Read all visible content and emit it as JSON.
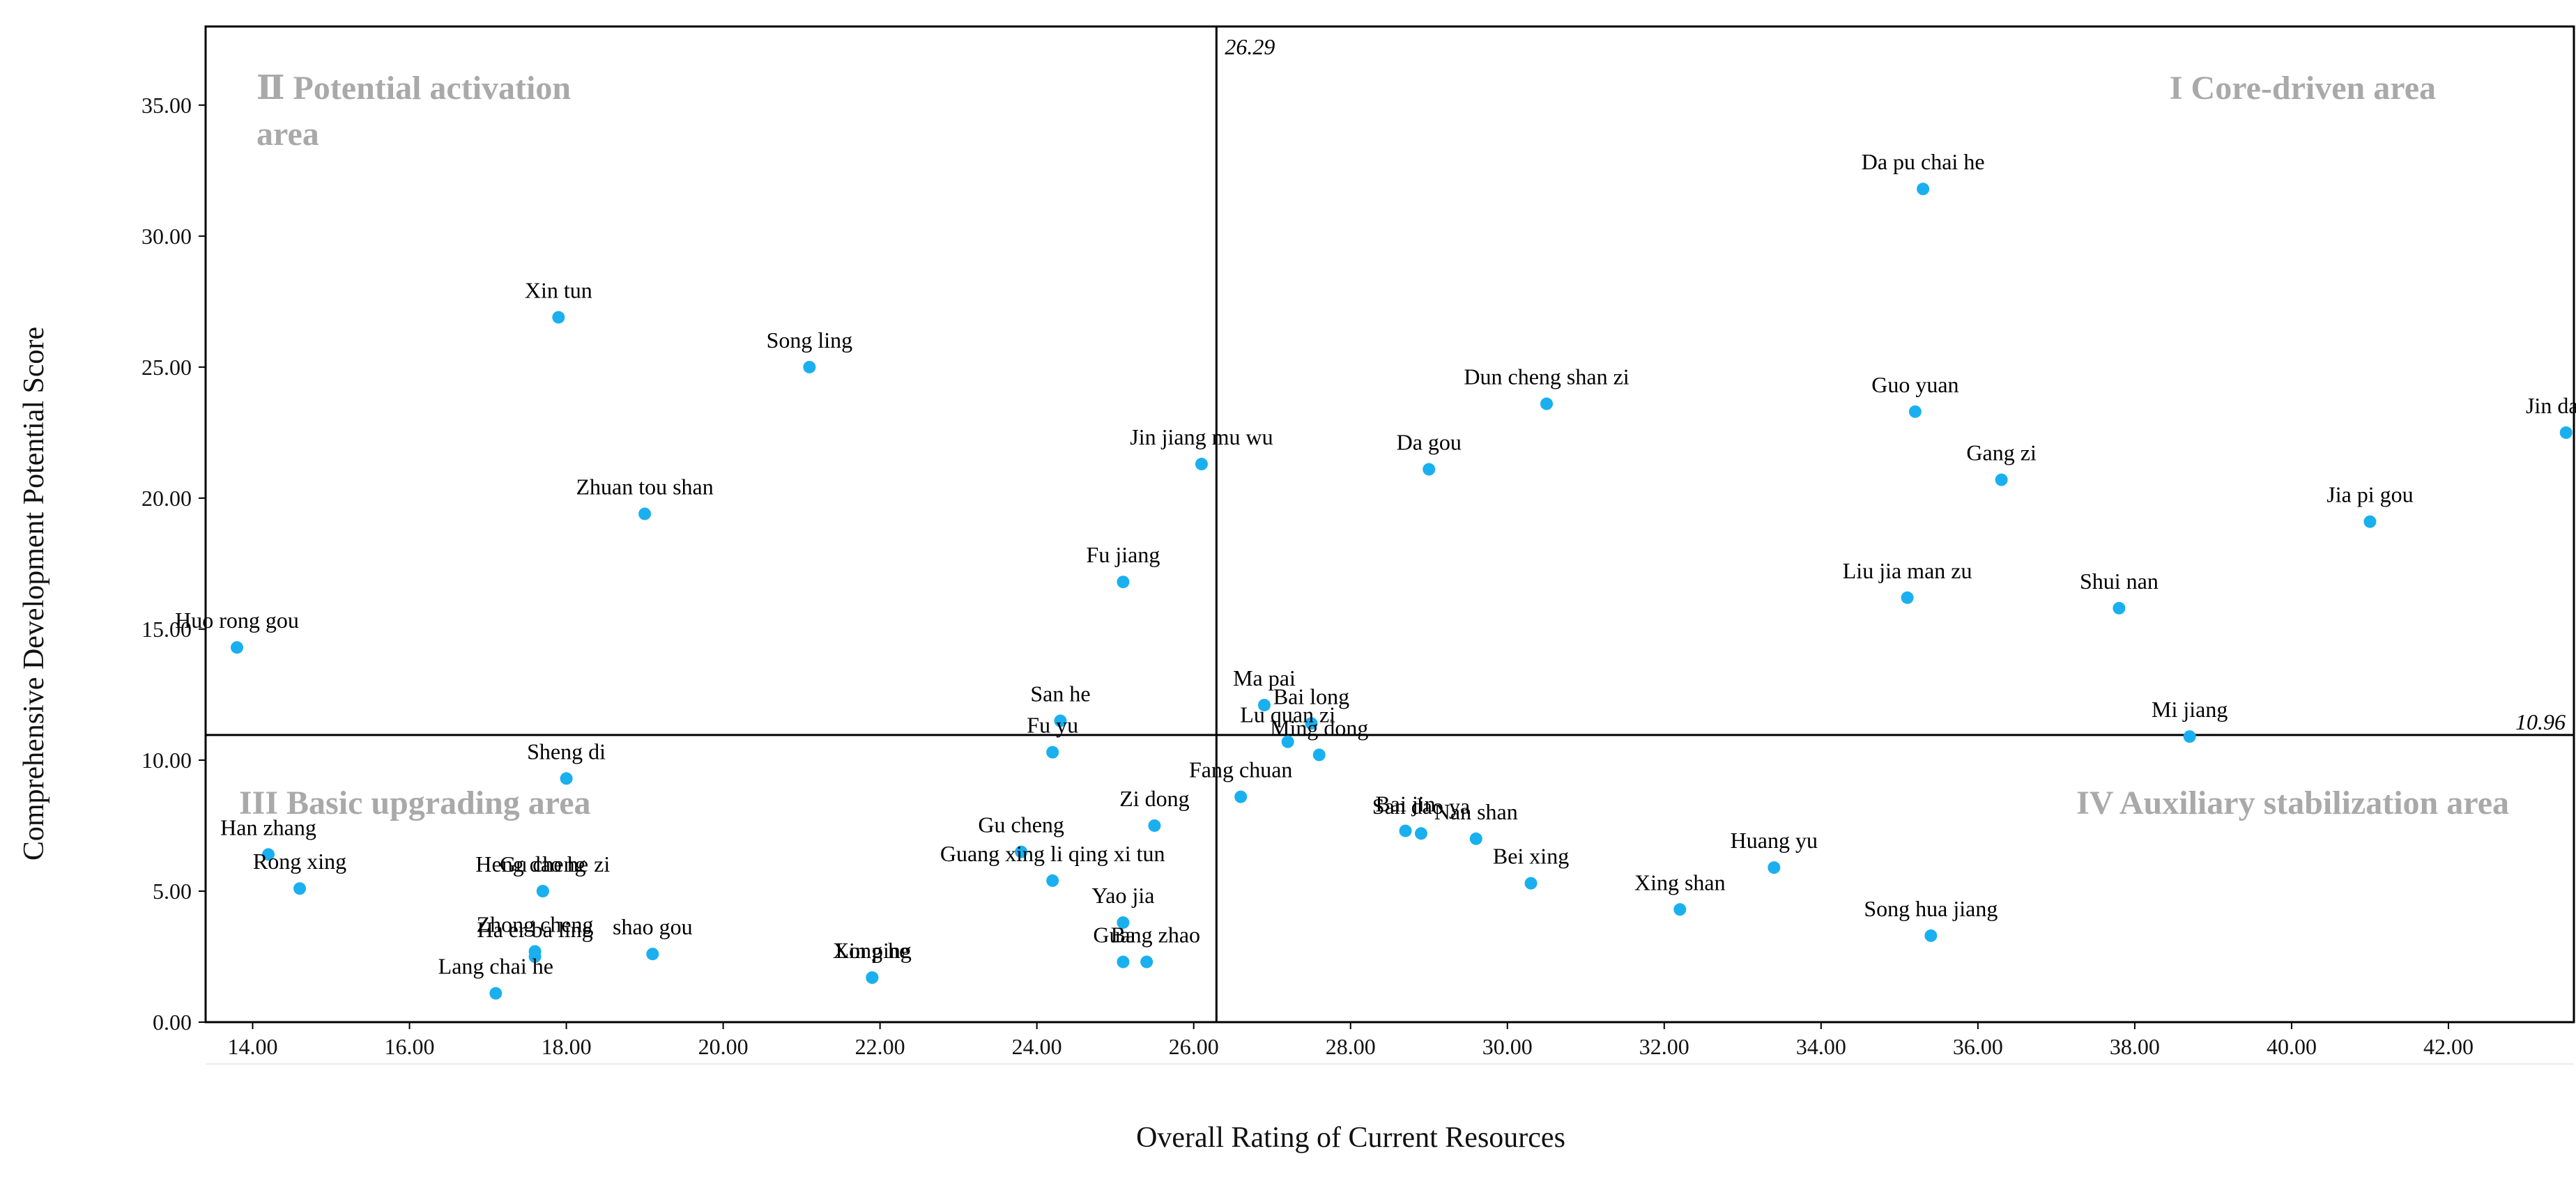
{
  "chart_data": {
    "type": "scatter",
    "title": "",
    "xlabel": "Overall Rating of Current Resources",
    "ylabel": "Comprehensive Development Potential Score",
    "xlim": [
      13.4,
      43.6
    ],
    "ylim": [
      0,
      38
    ],
    "xticks": [
      "14.00",
      "16.00",
      "18.00",
      "20.00",
      "22.00",
      "24.00",
      "26.00",
      "28.00",
      "30.00",
      "32.00",
      "34.00",
      "36.00",
      "38.00",
      "40.00",
      "42.00"
    ],
    "yticks": [
      "0.00",
      "5.00",
      "10.00",
      "15.00",
      "20.00",
      "25.00",
      "30.00",
      "35.00"
    ],
    "point_color": "#1ab0ef",
    "ref_x": 26.29,
    "ref_y": 10.96,
    "ref_x_label": "26.29",
    "ref_y_label": "10.96",
    "quadrants": {
      "q1": "I Core-driven area",
      "q2_line1": "Ⅱ Potential activation",
      "q2_line2": "area",
      "q3": "III Basic upgrading area",
      "q4": "IV Auxiliary stabilization area"
    },
    "points": [
      {
        "name": "Da pu chai he",
        "x": 35.3,
        "y": 31.8
      },
      {
        "name": "Xin tun",
        "x": 17.9,
        "y": 26.9
      },
      {
        "name": "Song ling",
        "x": 21.1,
        "y": 25.0
      },
      {
        "name": "Dun cheng shan zi",
        "x": 30.5,
        "y": 23.6
      },
      {
        "name": "Guo yuan",
        "x": 35.2,
        "y": 23.3
      },
      {
        "name": "Jin da lai",
        "x": 43.5,
        "y": 22.5
      },
      {
        "name": "Jin jiang mu wu",
        "x": 26.1,
        "y": 21.3
      },
      {
        "name": "Da gou",
        "x": 29.0,
        "y": 21.1
      },
      {
        "name": "Gang zi",
        "x": 36.3,
        "y": 20.7
      },
      {
        "name": "Zhuan tou shan",
        "x": 19.0,
        "y": 19.4
      },
      {
        "name": "Jia pi gou",
        "x": 41.0,
        "y": 19.1
      },
      {
        "name": "Fu jiang",
        "x": 25.1,
        "y": 16.8
      },
      {
        "name": "Liu jia man zu",
        "x": 35.1,
        "y": 16.2
      },
      {
        "name": "Shui nan",
        "x": 37.8,
        "y": 15.8
      },
      {
        "name": "Huo rong gou",
        "x": 13.8,
        "y": 14.3
      },
      {
        "name": "Ma pai",
        "x": 26.9,
        "y": 12.1
      },
      {
        "name": "Bai long",
        "x": 27.5,
        "y": 11.4
      },
      {
        "name": "San he",
        "x": 24.3,
        "y": 11.5
      },
      {
        "name": "Lu quan zi",
        "x": 27.2,
        "y": 10.7
      },
      {
        "name": "Mi jiang",
        "x": 38.7,
        "y": 10.9
      },
      {
        "name": "Ming dong",
        "x": 27.6,
        "y": 10.2
      },
      {
        "name": "Fu yu",
        "x": 24.2,
        "y": 10.3
      },
      {
        "name": "Sheng di",
        "x": 18.0,
        "y": 9.3
      },
      {
        "name": "Fang chuan",
        "x": 26.6,
        "y": 8.6
      },
      {
        "name": "Zi dong",
        "x": 25.5,
        "y": 7.5
      },
      {
        "name": "Bai jin",
        "x": 28.7,
        "y": 7.3
      },
      {
        "name": "San dao ya",
        "x": 28.9,
        "y": 7.2
      },
      {
        "name": "Nan shan",
        "x": 29.6,
        "y": 7.0
      },
      {
        "name": "Han zhang",
        "x": 14.2,
        "y": 6.4
      },
      {
        "name": "Gu cheng",
        "x": 23.8,
        "y": 6.5
      },
      {
        "name": "Huang yu",
        "x": 33.4,
        "y": 5.9
      },
      {
        "name": "Guang xing li qing xi tun",
        "x": 24.2,
        "y": 5.4
      },
      {
        "name": "Bei xing",
        "x": 30.3,
        "y": 5.3
      },
      {
        "name": "Rong xing",
        "x": 14.6,
        "y": 5.1
      },
      {
        "name": "Gu cheng",
        "x": 17.7,
        "y": 5.0
      },
      {
        "name": "Heng dao he zi",
        "x": 17.7,
        "y": 5.0
      },
      {
        "name": "Yao jia",
        "x": 25.1,
        "y": 3.8
      },
      {
        "name": "Xing shan",
        "x": 32.2,
        "y": 4.3
      },
      {
        "name": "Song hua jiang",
        "x": 35.4,
        "y": 3.3
      },
      {
        "name": "Zhong cheng",
        "x": 17.6,
        "y": 2.7
      },
      {
        "name": "shao gou",
        "x": 19.1,
        "y": 2.6
      },
      {
        "name": "Ha er ba ling",
        "x": 17.6,
        "y": 2.5
      },
      {
        "name": "Ba",
        "x": 25.1,
        "y": 2.3
      },
      {
        "name": "Guang zhao",
        "x": 25.4,
        "y": 2.3
      },
      {
        "name": "Xin ping",
        "x": 21.9,
        "y": 1.7
      },
      {
        "name": "Long he",
        "x": 21.9,
        "y": 1.7
      },
      {
        "name": "Lang chai he",
        "x": 17.1,
        "y": 1.1
      }
    ]
  }
}
